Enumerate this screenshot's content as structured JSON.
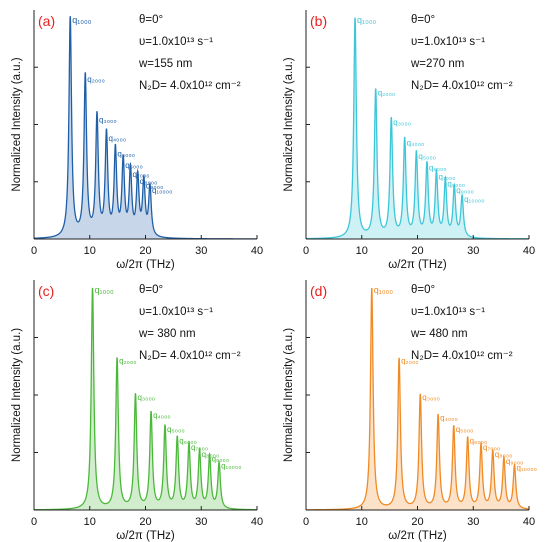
{
  "chart_data": [
    {
      "type": "line",
      "panel_label": "(a)",
      "xlabel": "ω/2π (THz)",
      "ylabel": "Normalized Intensity (a.u.)",
      "xlim": [
        0,
        40
      ],
      "ylim": [
        0,
        1.0
      ],
      "xticks": [
        "0",
        "10",
        "20",
        "30",
        "40"
      ],
      "color": "#1f5fa8",
      "params": [
        "θ=0°",
        "υ=1.0x10¹³ s⁻¹",
        "w=155 nm",
        "N₂D= 4.0x10¹² cm⁻²"
      ],
      "peak_labels": [
        "q₁₀₀₀",
        "q₂₀₀₀",
        "q₃₀₀₀",
        "q₄₀₀₀",
        "q₅₀₀₀",
        "q₆₀₀₀",
        "q₇₀₀₀",
        "q₈₀₀₀",
        "q₉₀₀₀",
        "q₁₀₀₀₀"
      ],
      "peaks_x": [
        6.5,
        9.2,
        11.3,
        13.0,
        14.6,
        16.0,
        17.3,
        18.6,
        19.7,
        20.8
      ],
      "peaks_y": [
        0.97,
        0.71,
        0.53,
        0.45,
        0.38,
        0.33,
        0.29,
        0.26,
        0.24,
        0.22
      ]
    },
    {
      "type": "line",
      "panel_label": "(b)",
      "xlabel": "ω/2π (THz)",
      "ylabel": "Normalized Intensity (a.u.)",
      "xlim": [
        0,
        40
      ],
      "ylim": [
        0,
        1.0
      ],
      "xticks": [
        "0",
        "10",
        "20",
        "30",
        "40"
      ],
      "color": "#3cc6d8",
      "params": [
        "θ=0°",
        "υ=1.0x10¹³ s⁻¹",
        "w=270 nm",
        "N₂D= 4.0x10¹² cm⁻²"
      ],
      "peak_labels": [
        "q₁₀₀₀",
        "q₂₀₀₀",
        "q₃₀₀₀",
        "q₄₀₀₀",
        "q₅₀₀₀",
        "q₆₀₀₀",
        "q₇₀₀₀",
        "q₈₀₀₀",
        "q₉₀₀₀",
        "q₁₀₀₀₀"
      ],
      "peaks_x": [
        8.8,
        12.5,
        15.3,
        17.7,
        19.8,
        21.7,
        23.4,
        25.0,
        26.6,
        28.0
      ],
      "peaks_y": [
        0.97,
        0.65,
        0.52,
        0.43,
        0.37,
        0.32,
        0.28,
        0.25,
        0.22,
        0.18
      ]
    },
    {
      "type": "line",
      "panel_label": "(c)",
      "xlabel": "ω/2π (THz)",
      "ylabel": "Normalized Intensity (a.u.)",
      "xlim": [
        0,
        40
      ],
      "ylim": [
        0,
        1.0
      ],
      "xticks": [
        "0",
        "10",
        "20",
        "30",
        "40"
      ],
      "color": "#4bb83a",
      "params": [
        "θ=0°",
        "υ=1.0x10¹³ s⁻¹",
        "w= 380 nm",
        "N₂D= 4.0x10¹² cm⁻²"
      ],
      "peak_labels": [
        "q₁₀₀₀",
        "q₂₀₀₀",
        "q₃₀₀₀",
        "q₄₀₀₀",
        "q₅₀₀₀",
        "q₆₀₀₀",
        "q₇₀₀₀",
        "q₈₀₀₀",
        "q₉₀₀₀",
        "q₁₀₀₀₀"
      ],
      "peaks_x": [
        10.5,
        14.9,
        18.2,
        21.0,
        23.5,
        25.7,
        27.8,
        29.7,
        31.5,
        33.2
      ],
      "peaks_y": [
        0.97,
        0.66,
        0.5,
        0.42,
        0.36,
        0.31,
        0.28,
        0.25,
        0.23,
        0.2
      ]
    },
    {
      "type": "line",
      "panel_label": "(d)",
      "xlabel": "ω/2π (THz)",
      "ylabel": "Normalized Intensity (a.u.)",
      "xlim": [
        0,
        40
      ],
      "ylim": [
        0,
        1.0
      ],
      "xticks": [
        "0",
        "10",
        "20",
        "30",
        "40"
      ],
      "color": "#f08a24",
      "params": [
        "θ=0°",
        "υ=1.0x10¹³ s⁻¹",
        "w= 480 nm",
        "N₂D= 4.0x10¹² cm⁻²"
      ],
      "peak_labels": [
        "q₁₀₀₀",
        "q₂₀₀₀",
        "q₃₀₀₀",
        "q₄₀₀₀",
        "q₅₀₀₀",
        "q₆₀₀₀",
        "q₇₀₀₀",
        "q₈₀₀₀",
        "q₉₀₀₀",
        "q₁₀₀₀₀"
      ],
      "peaks_x": [
        11.8,
        16.7,
        20.5,
        23.7,
        26.5,
        29.0,
        31.4,
        33.5,
        35.5,
        37.4
      ],
      "peaks_y": [
        0.97,
        0.66,
        0.5,
        0.41,
        0.36,
        0.31,
        0.28,
        0.25,
        0.22,
        0.19
      ]
    }
  ],
  "colors": {
    "panel_label": "#e8201e",
    "axis": "#222222",
    "text": "#111111"
  }
}
